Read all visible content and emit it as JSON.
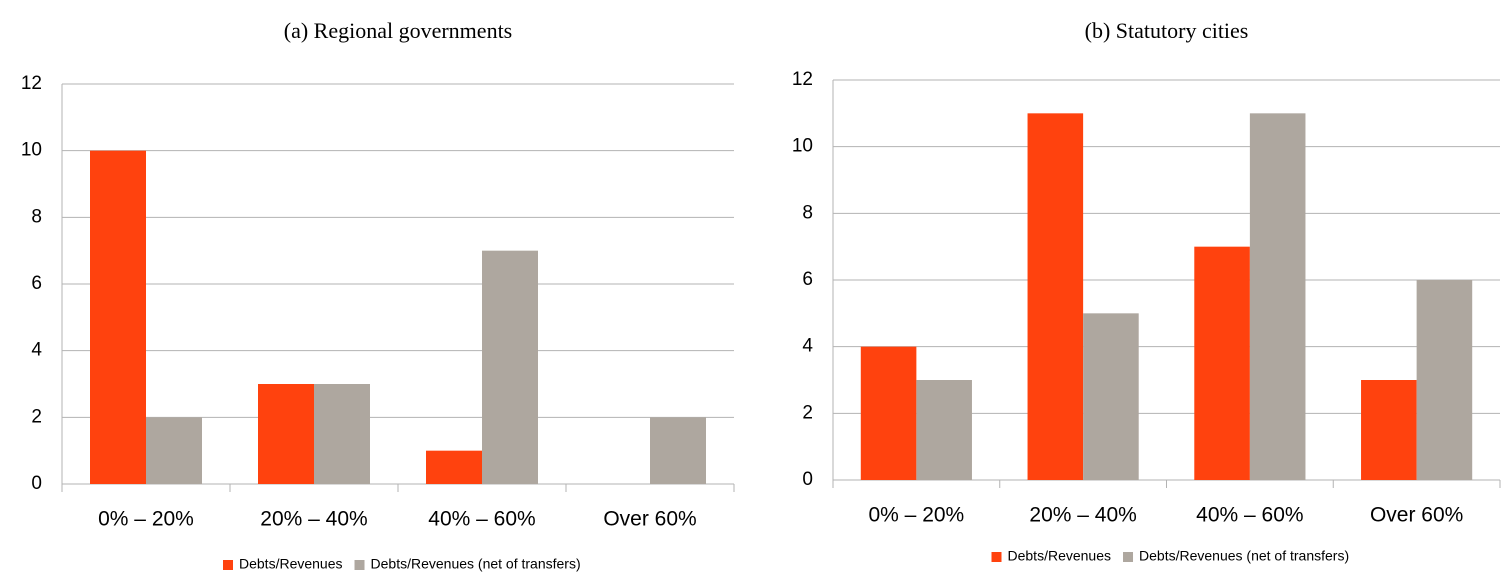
{
  "chart_data": [
    {
      "type": "bar",
      "title": "(a) Regional governments",
      "categories": [
        "0% – 20%",
        "20% – 40%",
        "40% – 60%",
        "Over 60%"
      ],
      "series": [
        {
          "name": "Debts/Revenues",
          "color": "#ff420e",
          "values": [
            10,
            3,
            1,
            0
          ]
        },
        {
          "name": "Debts/Revenues (net of transfers)",
          "color": "#aea79f",
          "values": [
            2,
            3,
            7,
            2
          ]
        }
      ],
      "ylim": [
        0,
        12
      ],
      "yticks": [
        0,
        2,
        4,
        6,
        8,
        10,
        12
      ],
      "grid": true,
      "legend": "bottom"
    },
    {
      "type": "bar",
      "title": "(b) Statutory cities",
      "categories": [
        "0% – 20%",
        "20% – 40%",
        "40% – 60%",
        "Over 60%"
      ],
      "series": [
        {
          "name": "Debts/Revenues",
          "color": "#ff420e",
          "values": [
            4,
            11,
            7,
            3
          ]
        },
        {
          "name": "Debts/Revenues (net of transfers)",
          "color": "#aea79f",
          "values": [
            3,
            5,
            11,
            6
          ]
        }
      ],
      "ylim": [
        0,
        12
      ],
      "yticks": [
        0,
        2,
        4,
        6,
        8,
        10,
        12
      ],
      "grid": true,
      "legend": "bottom"
    }
  ]
}
